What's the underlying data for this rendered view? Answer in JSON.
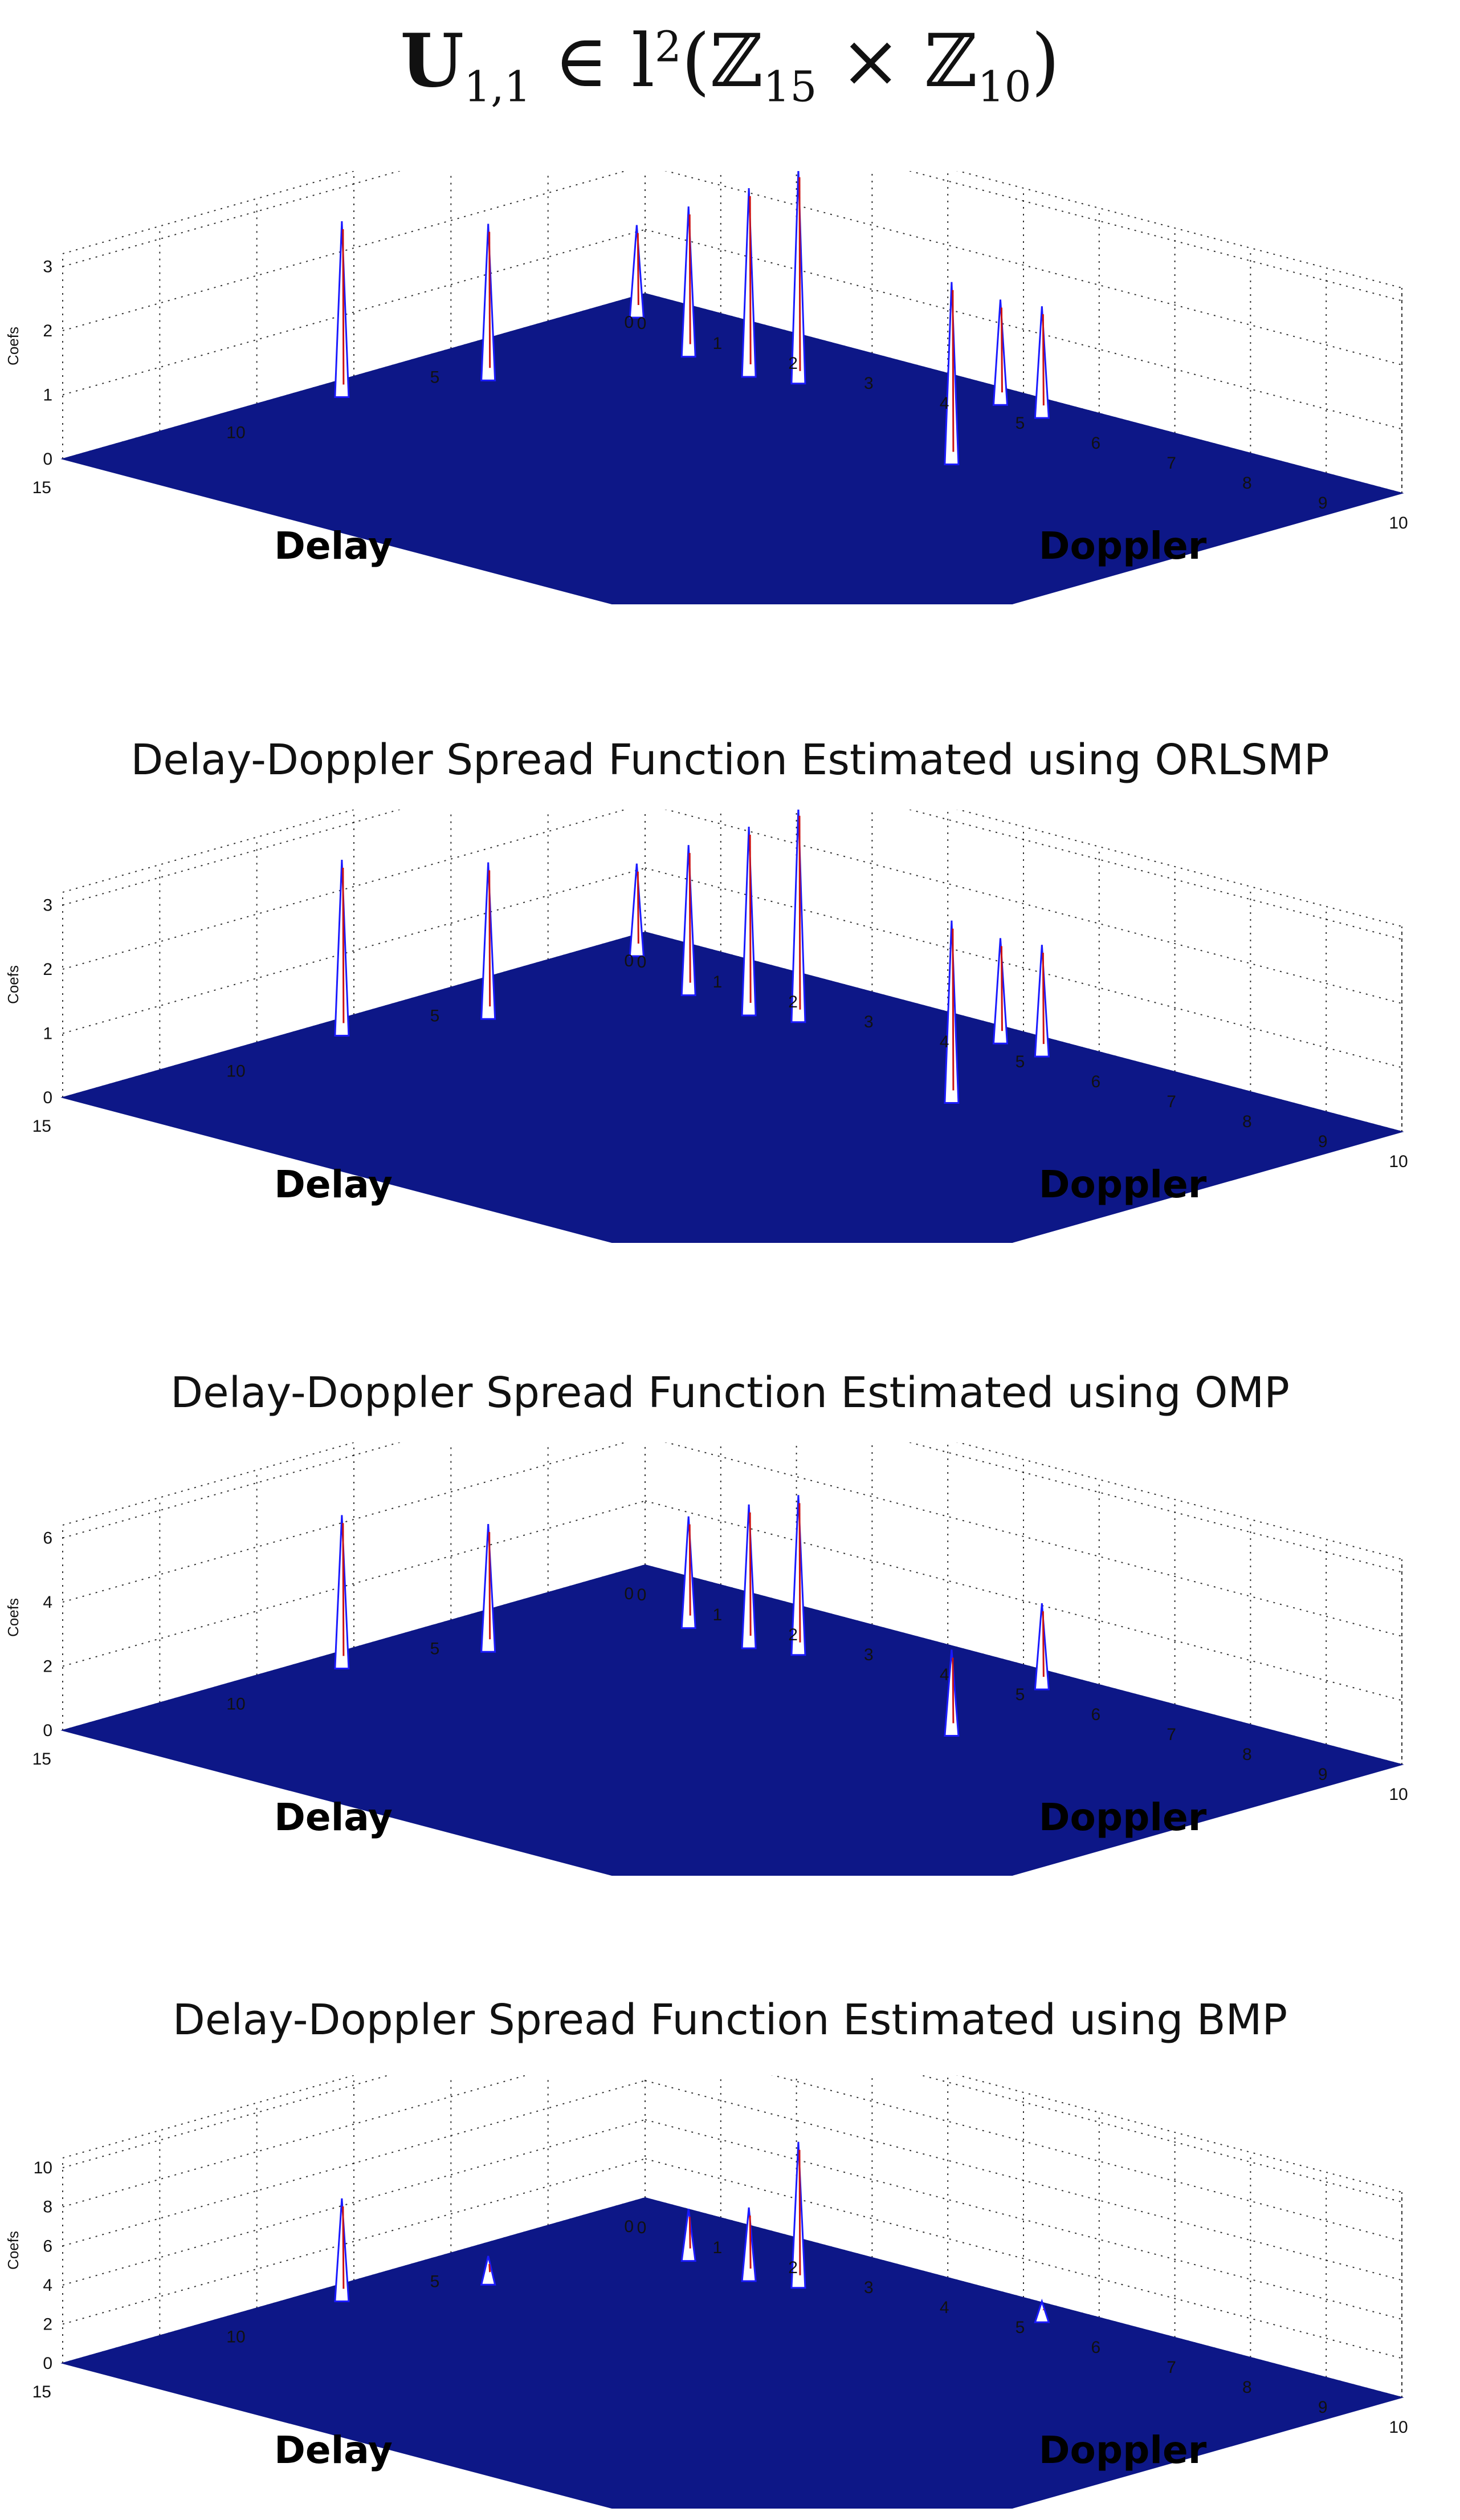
{
  "main_title": {
    "bold_symbol": "U",
    "subscript": "1,1",
    "rest": " ∈ l",
    "superscript": "2",
    "domain": "(ℤ",
    "sub_a": "15",
    "times": " × ℤ",
    "sub_b": "10",
    "close": ")"
  },
  "colors": {
    "surface": "#0d1787",
    "peak_outline": "#1a1aff",
    "peak_center": "#cc1111",
    "peak_fill": "#ffffff",
    "grid": "#333333",
    "axis_label": "#111111"
  },
  "chart_data": [
    {
      "type": "surface3d",
      "title": "",
      "xlabel": "Doppler",
      "ylabel": "Delay",
      "zlabel": "Coefs",
      "x_ticks": [
        "0",
        "1",
        "2",
        "3",
        "4",
        "5",
        "6",
        "7",
        "8",
        "9",
        "10"
      ],
      "y_ticks": [
        "0",
        "5",
        "10",
        "15"
      ],
      "z_ticks": [
        "0",
        "1",
        "2",
        "3"
      ],
      "xlim": [
        0,
        10
      ],
      "ylim": [
        0,
        15
      ],
      "zlim": [
        0,
        3.2
      ],
      "grid": true,
      "peaks": [
        {
          "doppler": 0.2,
          "delay": 8.2,
          "coef": 2.6
        },
        {
          "doppler": 0.8,
          "delay": 5.6,
          "coef": 2.3
        },
        {
          "doppler": 1.6,
          "delay": 2.0,
          "coef": 2.2
        },
        {
          "doppler": 0.3,
          "delay": 0.8,
          "coef": 1.3
        },
        {
          "doppler": 2.5,
          "delay": 2.2,
          "coef": 2.8
        },
        {
          "doppler": 3.0,
          "delay": 1.9,
          "coef": 3.2
        },
        {
          "doppler": 6.0,
          "delay": 3.8,
          "coef": 2.7
        },
        {
          "doppler": 4.9,
          "delay": 0.4,
          "coef": 1.5
        },
        {
          "doppler": 5.5,
          "delay": 0.5,
          "coef": 1.6
        }
      ]
    },
    {
      "type": "surface3d",
      "title": "Delay-Doppler Spread Function Estimated using ORLSMP",
      "xlabel": "Doppler",
      "ylabel": "Delay",
      "zlabel": "Coefs",
      "x_ticks": [
        "0",
        "1",
        "2",
        "3",
        "4",
        "5",
        "6",
        "7",
        "8",
        "9",
        "10"
      ],
      "y_ticks": [
        "0",
        "5",
        "10",
        "15"
      ],
      "z_ticks": [
        "0",
        "1",
        "2",
        "3"
      ],
      "xlim": [
        0,
        10
      ],
      "ylim": [
        0,
        15
      ],
      "zlim": [
        0,
        3.2
      ],
      "grid": true,
      "peaks": [
        {
          "doppler": 0.2,
          "delay": 8.2,
          "coef": 2.6
        },
        {
          "doppler": 0.8,
          "delay": 5.6,
          "coef": 2.3
        },
        {
          "doppler": 1.6,
          "delay": 2.0,
          "coef": 2.2
        },
        {
          "doppler": 0.3,
          "delay": 0.8,
          "coef": 1.3
        },
        {
          "doppler": 2.5,
          "delay": 2.2,
          "coef": 2.8
        },
        {
          "doppler": 3.0,
          "delay": 1.9,
          "coef": 3.2
        },
        {
          "doppler": 6.0,
          "delay": 3.8,
          "coef": 2.7
        },
        {
          "doppler": 4.9,
          "delay": 0.4,
          "coef": 1.5
        },
        {
          "doppler": 5.5,
          "delay": 0.5,
          "coef": 1.6
        }
      ]
    },
    {
      "type": "surface3d",
      "title": "Delay-Doppler Spread Function Estimated using OMP",
      "xlabel": "Doppler",
      "ylabel": "Delay",
      "zlabel": "Coefs",
      "x_ticks": [
        "0",
        "1",
        "2",
        "3",
        "4",
        "5",
        "6",
        "7",
        "8",
        "9",
        "10"
      ],
      "y_ticks": [
        "0",
        "5",
        "10",
        "15"
      ],
      "z_ticks": [
        "0",
        "2",
        "4",
        "6"
      ],
      "xlim": [
        0,
        10
      ],
      "ylim": [
        0,
        15
      ],
      "zlim": [
        0,
        6.4
      ],
      "grid": true,
      "peaks": [
        {
          "doppler": 0.2,
          "delay": 8.2,
          "coef": 4.5
        },
        {
          "doppler": 0.8,
          "delay": 5.6,
          "coef": 3.7
        },
        {
          "doppler": 1.6,
          "delay": 2.0,
          "coef": 3.2
        },
        {
          "doppler": 2.5,
          "delay": 2.2,
          "coef": 4.2
        },
        {
          "doppler": 3.0,
          "delay": 1.9,
          "coef": 4.7
        },
        {
          "doppler": 6.0,
          "delay": 3.8,
          "coef": 2.4
        },
        {
          "doppler": 5.5,
          "delay": 0.5,
          "coef": 2.4
        }
      ]
    },
    {
      "type": "surface3d",
      "title": "Delay-Doppler Spread Function Estimated using BMP",
      "xlabel": "Doppler",
      "ylabel": "Delay",
      "zlabel": "Coefs",
      "x_ticks": [
        "0",
        "1",
        "2",
        "3",
        "4",
        "5",
        "6",
        "7",
        "8",
        "9",
        "10"
      ],
      "y_ticks": [
        "0",
        "5",
        "10",
        "15"
      ],
      "z_ticks": [
        "0",
        "2",
        "4",
        "6",
        "8",
        "10"
      ],
      "xlim": [
        0,
        10
      ],
      "ylim": [
        0,
        15
      ],
      "zlim": [
        0,
        10.5
      ],
      "grid": true,
      "peaks": [
        {
          "doppler": 0.2,
          "delay": 8.2,
          "coef": 4.8
        },
        {
          "doppler": 0.8,
          "delay": 5.6,
          "coef": 1.0
        },
        {
          "doppler": 1.6,
          "delay": 2.0,
          "coef": 2.2
        },
        {
          "doppler": 2.5,
          "delay": 2.2,
          "coef": 3.3
        },
        {
          "doppler": 3.0,
          "delay": 1.9,
          "coef": 7.0
        },
        {
          "doppler": 5.5,
          "delay": 0.5,
          "coef": 0.6
        }
      ]
    }
  ]
}
